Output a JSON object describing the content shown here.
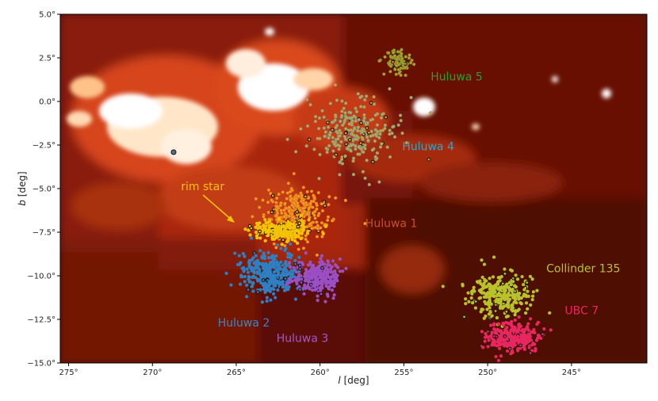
{
  "chart_data": {
    "type": "scatter",
    "xlabel_italic": "l",
    "xlabel_unit": "[deg]",
    "ylabel_italic": "b",
    "ylabel_unit": "[deg]",
    "xlim": [
      275.5,
      240.5
    ],
    "ylim": [
      -15.0,
      5.0
    ],
    "x_ticks": [
      275,
      270,
      265,
      260,
      255,
      250,
      245
    ],
    "x_tick_labels": [
      "275°",
      "270°",
      "265°",
      "260°",
      "255°",
      "250°",
      "245°"
    ],
    "y_ticks": [
      5.0,
      2.5,
      0.0,
      -2.5,
      -5.0,
      -7.5,
      -10.0,
      -12.5,
      -15.0
    ],
    "y_tick_labels": [
      "5.0°",
      "2.5°",
      "0.0°",
      "−2.5°",
      "−5.0°",
      "−7.5°",
      "−10.0°",
      "−12.5°",
      "−15.0°"
    ],
    "background": "dust emission map (dark red to white)",
    "series": [
      {
        "name": "Huluwa 5",
        "color": "#2ca02c",
        "fill": "#d98b2b",
        "center": [
          255.3,
          2.3
        ],
        "spread": [
          0.8,
          0.6
        ],
        "count": 90
      },
      {
        "name": "Huluwa 4",
        "color": "#2aa7c9",
        "fill": "#e49a2a",
        "center": [
          257.8,
          -1.8
        ],
        "spread": [
          2.3,
          1.8
        ],
        "count": 260
      },
      {
        "name": "Huluwa 1",
        "color": "#e0641b",
        "fill": "#f0a020",
        "center": [
          261.3,
          -6.4
        ],
        "spread": [
          1.8,
          1.3
        ],
        "count": 330
      },
      {
        "name": "rim star",
        "color": "#f5c400",
        "fill": "#f5c400",
        "center": [
          262.4,
          -7.4
        ],
        "spread": [
          1.5,
          0.45
        ],
        "count": 240
      },
      {
        "name": "Huluwa 2",
        "color": "#2f7fc1",
        "fill": "#2f7fc1",
        "center": [
          263.0,
          -9.9
        ],
        "spread": [
          1.5,
          1.1
        ],
        "count": 360
      },
      {
        "name": "Huluwa 3",
        "color": "#9b4fc4",
        "fill": "#9b4fc4",
        "center": [
          260.2,
          -10.1
        ],
        "spread": [
          1.2,
          0.9
        ],
        "count": 300
      },
      {
        "name": "Collinder 135",
        "color": "#b8c22a",
        "fill": "#b8c22a",
        "center": [
          249.3,
          -11.1
        ],
        "spread": [
          1.6,
          1.1
        ],
        "count": 300
      },
      {
        "name": "UBC 7",
        "color": "#e8265f",
        "fill": "#e8265f",
        "center": [
          248.5,
          -13.5
        ],
        "spread": [
          1.4,
          0.8
        ],
        "count": 320
      }
    ],
    "annotations": [
      {
        "text": "Huluwa 5",
        "x": 253.4,
        "y": 1.2,
        "color": "#2ca02c"
      },
      {
        "text": "Huluwa 4",
        "x": 255.1,
        "y": -2.8,
        "color": "#2aa7c9"
      },
      {
        "text": "rim star",
        "x": 268.3,
        "y": -5.1,
        "color": "#f5c400"
      },
      {
        "text": "Huluwa 1",
        "x": 257.3,
        "y": -7.2,
        "color": "#c8512a"
      },
      {
        "text": "Collinder 135",
        "x": 246.5,
        "y": -9.8,
        "color": "#b8c22a"
      },
      {
        "text": "UBC 7",
        "x": 245.4,
        "y": -12.2,
        "color": "#e8265f"
      },
      {
        "text": "Huluwa 2",
        "x": 266.1,
        "y": -12.9,
        "color": "#3a86c8"
      },
      {
        "text": "Huluwa 3",
        "x": 262.6,
        "y": -13.8,
        "color": "#a259c6"
      }
    ]
  }
}
